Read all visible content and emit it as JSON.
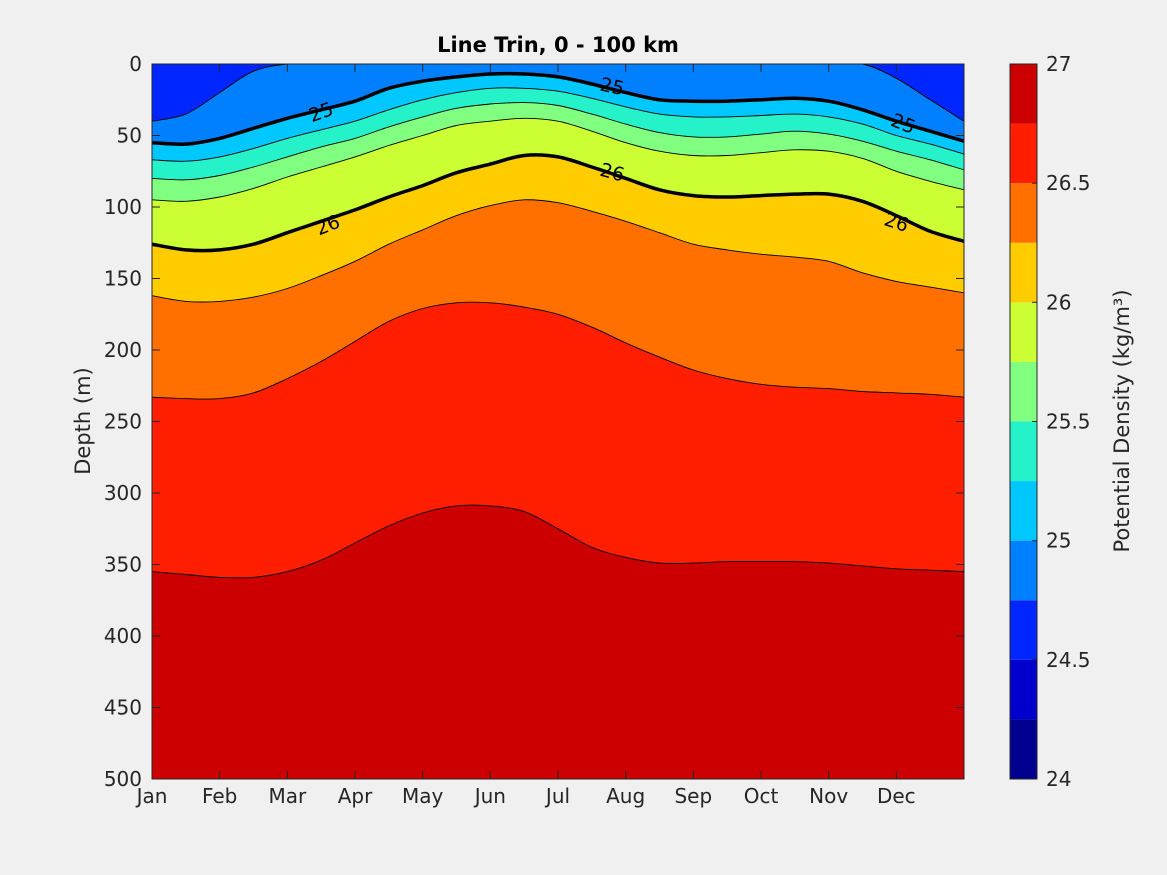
{
  "chart_data": {
    "type": "filled-contour",
    "title": "Line Trin, 0 - 100 km",
    "ylabel": "Depth (m)",
    "colorbar_label": "Potential Density (kg/m³)",
    "y_reversed": true,
    "ylim": [
      0,
      500
    ],
    "yticks": [
      "0",
      "50",
      "100",
      "150",
      "200",
      "250",
      "300",
      "350",
      "400",
      "450",
      "500"
    ],
    "xticks": [
      {
        "value": 0,
        "label": "Jan"
      },
      {
        "value": 1,
        "label": "Feb"
      },
      {
        "value": 2,
        "label": "Mar"
      },
      {
        "value": 3,
        "label": "Apr"
      },
      {
        "value": 4,
        "label": "May"
      },
      {
        "value": 5,
        "label": "Jun"
      },
      {
        "value": 6,
        "label": "Jul"
      },
      {
        "value": 7,
        "label": "Aug"
      },
      {
        "value": 8,
        "label": "Sep"
      },
      {
        "value": 9,
        "label": "Oct"
      },
      {
        "value": 10,
        "label": "Nov"
      },
      {
        "value": 11,
        "label": "Dec"
      }
    ],
    "xlim": [
      0,
      12
    ],
    "colorbar_ticks": [
      "24",
      "24.5",
      "25",
      "25.5",
      "26",
      "26.5",
      "27"
    ],
    "colorbar_range": [
      24,
      27
    ],
    "levels": [
      24,
      24.25,
      24.5,
      24.75,
      25,
      25.25,
      25.5,
      25.75,
      26,
      26.25,
      26.5,
      26.75,
      27
    ],
    "level_colors": [
      "#00008f",
      "#0000cc",
      "#0026ff",
      "#0080ff",
      "#00c8ff",
      "#26f2ca",
      "#80ff80",
      "#ccff33",
      "#ffcc00",
      "#ff7000",
      "#ff1e00",
      "#cc0000"
    ],
    "isopycnal_x": [
      0,
      0.5,
      1,
      1.5,
      2,
      2.5,
      3,
      3.5,
      4,
      4.5,
      5,
      5.5,
      6,
      6.5,
      7,
      7.5,
      8,
      8.5,
      9,
      9.5,
      10,
      10.5,
      11,
      11.5,
      12
    ],
    "isopycnals": [
      {
        "level": 24.75,
        "depth": [
          40,
          35,
          20,
          5,
          0,
          0,
          0,
          0,
          0,
          0,
          0,
          0,
          0,
          0,
          0,
          0,
          0,
          0,
          0,
          0,
          0,
          0,
          10,
          25,
          40
        ]
      },
      {
        "level": 25.0,
        "labelled": true,
        "label": "25",
        "depth": [
          55,
          56,
          52,
          45,
          38,
          32,
          26,
          17,
          12,
          9,
          7,
          7,
          9,
          14,
          20,
          25,
          26,
          26,
          25,
          24,
          26,
          32,
          40,
          47,
          54
        ]
      },
      {
        "level": 25.25,
        "depth": [
          67,
          68,
          65,
          59,
          52,
          46,
          40,
          32,
          25,
          20,
          17,
          17,
          19,
          24,
          30,
          35,
          37,
          37,
          36,
          35,
          37,
          42,
          50,
          56,
          63
        ]
      },
      {
        "level": 25.5,
        "depth": [
          80,
          81,
          78,
          72,
          65,
          58,
          52,
          44,
          37,
          31,
          28,
          27,
          29,
          35,
          42,
          48,
          51,
          51,
          49,
          47,
          49,
          54,
          61,
          67,
          74
        ]
      },
      {
        "level": 25.75,
        "depth": [
          95,
          96,
          93,
          87,
          79,
          72,
          65,
          57,
          50,
          43,
          40,
          38,
          40,
          47,
          55,
          61,
          64,
          64,
          62,
          60,
          61,
          66,
          75,
          82,
          88
        ]
      },
      {
        "level": 26.0,
        "labelled": true,
        "label": "26",
        "depth": [
          126,
          130,
          130,
          126,
          118,
          110,
          102,
          93,
          85,
          76,
          70,
          64,
          65,
          72,
          80,
          88,
          92,
          93,
          92,
          91,
          91,
          96,
          106,
          117,
          124
        ]
      },
      {
        "level": 26.25,
        "depth": [
          162,
          166,
          166,
          163,
          157,
          148,
          138,
          126,
          116,
          106,
          99,
          95,
          97,
          103,
          110,
          118,
          126,
          130,
          133,
          135,
          138,
          146,
          152,
          156,
          160
        ]
      },
      {
        "level": 26.5,
        "depth": [
          233,
          234,
          234,
          230,
          220,
          208,
          194,
          180,
          171,
          167,
          167,
          170,
          175,
          184,
          195,
          205,
          214,
          220,
          224,
          226,
          227,
          229,
          230,
          231,
          233
        ]
      },
      {
        "level": 26.75,
        "depth": [
          355,
          357,
          359,
          359,
          355,
          347,
          335,
          323,
          314,
          309,
          309,
          313,
          325,
          338,
          345,
          349,
          349,
          348,
          348,
          348,
          349,
          351,
          353,
          354,
          355
        ]
      }
    ],
    "contour_labels": [
      {
        "text": "25",
        "x": 2.5,
        "y": 34,
        "angle": -20
      },
      {
        "text": "25",
        "x": 6.8,
        "y": 16,
        "angle": 12
      },
      {
        "text": "25",
        "x": 11.1,
        "y": 42,
        "angle": 22
      },
      {
        "text": "26",
        "x": 2.6,
        "y": 113,
        "angle": -22
      },
      {
        "text": "26",
        "x": 6.8,
        "y": 76,
        "angle": 15
      },
      {
        "text": "26",
        "x": 11.0,
        "y": 111,
        "angle": 18
      }
    ]
  }
}
